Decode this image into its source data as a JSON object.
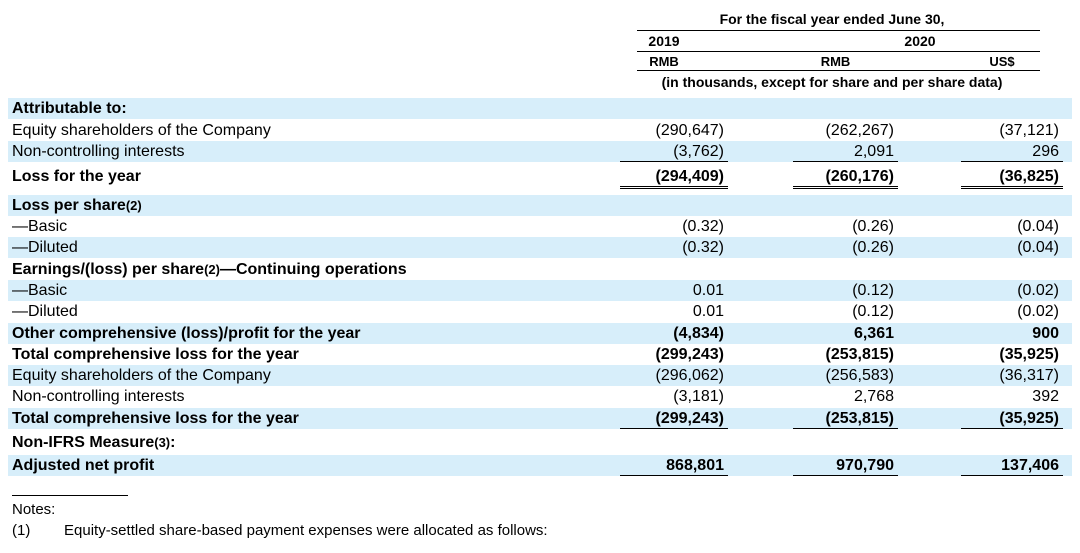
{
  "header": {
    "period": "For the fiscal year ended June 30,",
    "year1": "2019",
    "year2": "2020",
    "cur1": "RMB",
    "cur2": "RMB",
    "cur3": "US$",
    "units": "(in thousands, except for share and per share data)"
  },
  "rows": [
    {
      "label": "Attributable to:",
      "sup": "",
      "bold": true,
      "blue": true,
      "v": [
        "",
        "",
        ""
      ],
      "line": ""
    },
    {
      "label": "Equity shareholders of the Company",
      "sup": "",
      "bold": false,
      "blue": false,
      "v": [
        "(290,647)",
        "(262,267)",
        "(37,121)"
      ],
      "line": ""
    },
    {
      "label": "Non-controlling interests",
      "sup": "",
      "bold": false,
      "blue": true,
      "v": [
        "(3,762)",
        "2,091",
        "296"
      ],
      "line": "single"
    },
    {
      "label": "Loss for the year",
      "sup": "",
      "bold": true,
      "blue": false,
      "v": [
        "(294,409)",
        "(260,176)",
        "(36,825)"
      ],
      "line": "double"
    },
    {
      "label": "Loss per share",
      "sup": "(2)",
      "bold": true,
      "blue": true,
      "v": [
        "",
        "",
        ""
      ],
      "line": ""
    },
    {
      "label": "—Basic",
      "sup": "",
      "bold": false,
      "blue": false,
      "v": [
        "(0.32)",
        "(0.26)",
        "(0.04)"
      ],
      "line": ""
    },
    {
      "label": "—Diluted",
      "sup": "",
      "bold": false,
      "blue": true,
      "v": [
        "(0.32)",
        "(0.26)",
        "(0.04)"
      ],
      "line": ""
    },
    {
      "label": "Earnings/(loss) per share",
      "sup": "(2)",
      "tail": "—Continuing operations",
      "bold": true,
      "blue": false,
      "v": [
        "",
        "",
        ""
      ],
      "line": ""
    },
    {
      "label": "—Basic",
      "sup": "",
      "bold": false,
      "blue": true,
      "v": [
        "0.01",
        "(0.12)",
        "(0.02)"
      ],
      "line": ""
    },
    {
      "label": "—Diluted",
      "sup": "",
      "bold": false,
      "blue": false,
      "v": [
        "0.01",
        "(0.12)",
        "(0.02)"
      ],
      "line": ""
    },
    {
      "label": "Other comprehensive (loss)/profit for the year",
      "sup": "",
      "bold": true,
      "blue": true,
      "v": [
        "(4,834)",
        "6,361",
        "900"
      ],
      "line": ""
    },
    {
      "label": "Total comprehensive loss for the year",
      "sup": "",
      "bold": true,
      "blue": false,
      "v": [
        "(299,243)",
        "(253,815)",
        "(35,925)"
      ],
      "line": ""
    },
    {
      "label": "Equity shareholders of the Company",
      "sup": "",
      "bold": false,
      "blue": true,
      "v": [
        "(296,062)",
        "(256,583)",
        "(36,317)"
      ],
      "line": ""
    },
    {
      "label": "Non-controlling interests",
      "sup": "",
      "bold": false,
      "blue": false,
      "v": [
        "(3,181)",
        "2,768",
        "392"
      ],
      "line": ""
    },
    {
      "label": "Total comprehensive loss for the year",
      "sup": "",
      "bold": true,
      "blue": true,
      "v": [
        "(299,243)",
        "(253,815)",
        "(35,925)"
      ],
      "line": "single"
    },
    {
      "label": "Non-IFRS Measure",
      "sup": "(3)",
      "tail": ":",
      "bold": true,
      "blue": false,
      "v": [
        "",
        "",
        ""
      ],
      "line": ""
    },
    {
      "label": "Adjusted net profit",
      "sup": "",
      "bold": true,
      "blue": true,
      "v": [
        "868,801",
        "970,790",
        "137,406"
      ],
      "line": "single"
    }
  ],
  "notes": {
    "heading": "Notes:",
    "n1_num": "(1)",
    "n1_text": "Equity-settled share-based payment expenses were allocated as follows:"
  }
}
